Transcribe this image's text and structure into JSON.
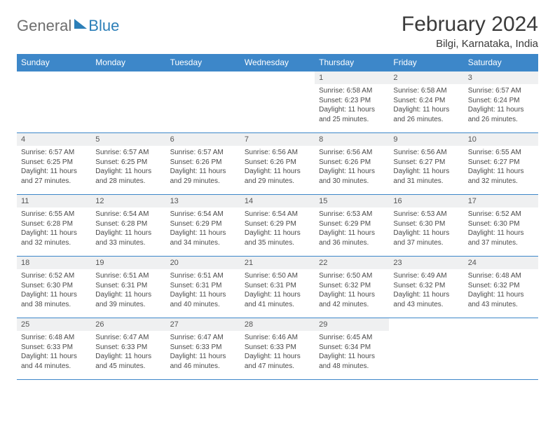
{
  "brand": {
    "part1": "General",
    "part2": "Blue"
  },
  "title": "February 2024",
  "location": "Bilgi, Karnataka, India",
  "colors": {
    "header_bg": "#3d87c9",
    "header_fg": "#ffffff",
    "daynum_bg": "#eff0f1",
    "border": "#3d87c9",
    "text": "#4a4a4a",
    "title": "#3a3a3a",
    "logo_gray": "#6e6e6e",
    "logo_blue": "#2c7fb8"
  },
  "weekdays": [
    "Sunday",
    "Monday",
    "Tuesday",
    "Wednesday",
    "Thursday",
    "Friday",
    "Saturday"
  ],
  "weeks": [
    [
      null,
      null,
      null,
      null,
      {
        "n": "1",
        "sr": "6:58 AM",
        "ss": "6:23 PM",
        "dl": "11 hours and 25 minutes."
      },
      {
        "n": "2",
        "sr": "6:58 AM",
        "ss": "6:24 PM",
        "dl": "11 hours and 26 minutes."
      },
      {
        "n": "3",
        "sr": "6:57 AM",
        "ss": "6:24 PM",
        "dl": "11 hours and 26 minutes."
      }
    ],
    [
      {
        "n": "4",
        "sr": "6:57 AM",
        "ss": "6:25 PM",
        "dl": "11 hours and 27 minutes."
      },
      {
        "n": "5",
        "sr": "6:57 AM",
        "ss": "6:25 PM",
        "dl": "11 hours and 28 minutes."
      },
      {
        "n": "6",
        "sr": "6:57 AM",
        "ss": "6:26 PM",
        "dl": "11 hours and 29 minutes."
      },
      {
        "n": "7",
        "sr": "6:56 AM",
        "ss": "6:26 PM",
        "dl": "11 hours and 29 minutes."
      },
      {
        "n": "8",
        "sr": "6:56 AM",
        "ss": "6:26 PM",
        "dl": "11 hours and 30 minutes."
      },
      {
        "n": "9",
        "sr": "6:56 AM",
        "ss": "6:27 PM",
        "dl": "11 hours and 31 minutes."
      },
      {
        "n": "10",
        "sr": "6:55 AM",
        "ss": "6:27 PM",
        "dl": "11 hours and 32 minutes."
      }
    ],
    [
      {
        "n": "11",
        "sr": "6:55 AM",
        "ss": "6:28 PM",
        "dl": "11 hours and 32 minutes."
      },
      {
        "n": "12",
        "sr": "6:54 AM",
        "ss": "6:28 PM",
        "dl": "11 hours and 33 minutes."
      },
      {
        "n": "13",
        "sr": "6:54 AM",
        "ss": "6:29 PM",
        "dl": "11 hours and 34 minutes."
      },
      {
        "n": "14",
        "sr": "6:54 AM",
        "ss": "6:29 PM",
        "dl": "11 hours and 35 minutes."
      },
      {
        "n": "15",
        "sr": "6:53 AM",
        "ss": "6:29 PM",
        "dl": "11 hours and 36 minutes."
      },
      {
        "n": "16",
        "sr": "6:53 AM",
        "ss": "6:30 PM",
        "dl": "11 hours and 37 minutes."
      },
      {
        "n": "17",
        "sr": "6:52 AM",
        "ss": "6:30 PM",
        "dl": "11 hours and 37 minutes."
      }
    ],
    [
      {
        "n": "18",
        "sr": "6:52 AM",
        "ss": "6:30 PM",
        "dl": "11 hours and 38 minutes."
      },
      {
        "n": "19",
        "sr": "6:51 AM",
        "ss": "6:31 PM",
        "dl": "11 hours and 39 minutes."
      },
      {
        "n": "20",
        "sr": "6:51 AM",
        "ss": "6:31 PM",
        "dl": "11 hours and 40 minutes."
      },
      {
        "n": "21",
        "sr": "6:50 AM",
        "ss": "6:31 PM",
        "dl": "11 hours and 41 minutes."
      },
      {
        "n": "22",
        "sr": "6:50 AM",
        "ss": "6:32 PM",
        "dl": "11 hours and 42 minutes."
      },
      {
        "n": "23",
        "sr": "6:49 AM",
        "ss": "6:32 PM",
        "dl": "11 hours and 43 minutes."
      },
      {
        "n": "24",
        "sr": "6:48 AM",
        "ss": "6:32 PM",
        "dl": "11 hours and 43 minutes."
      }
    ],
    [
      {
        "n": "25",
        "sr": "6:48 AM",
        "ss": "6:33 PM",
        "dl": "11 hours and 44 minutes."
      },
      {
        "n": "26",
        "sr": "6:47 AM",
        "ss": "6:33 PM",
        "dl": "11 hours and 45 minutes."
      },
      {
        "n": "27",
        "sr": "6:47 AM",
        "ss": "6:33 PM",
        "dl": "11 hours and 46 minutes."
      },
      {
        "n": "28",
        "sr": "6:46 AM",
        "ss": "6:33 PM",
        "dl": "11 hours and 47 minutes."
      },
      {
        "n": "29",
        "sr": "6:45 AM",
        "ss": "6:34 PM",
        "dl": "11 hours and 48 minutes."
      },
      null,
      null
    ]
  ],
  "labels": {
    "sunrise": "Sunrise:",
    "sunset": "Sunset:",
    "daylight": "Daylight:"
  }
}
